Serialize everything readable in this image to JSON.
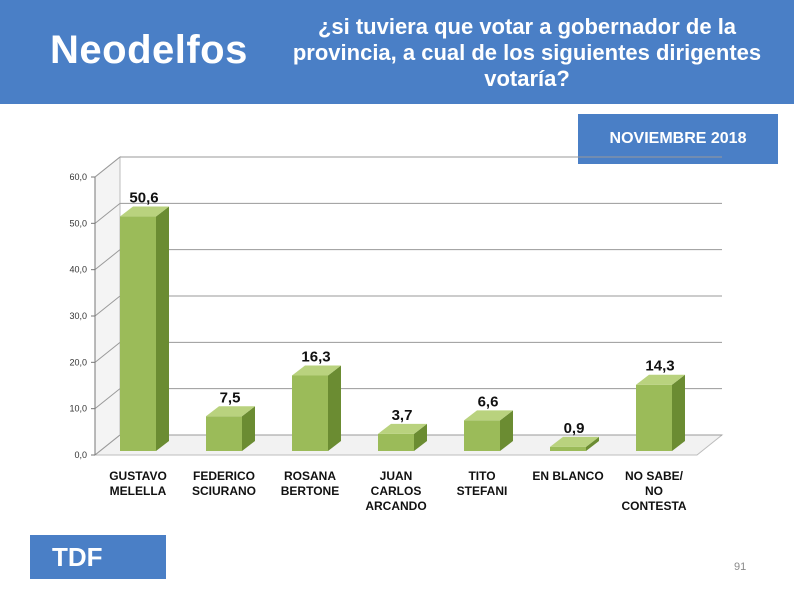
{
  "header": {
    "brand": "Neodelfos",
    "question": "¿si tuviera que votar a gobernador de la provincia, a cual de los siguientes dirigentes votaría?"
  },
  "badges": {
    "date": "NOVIEMBRE 2018",
    "region": "TDF"
  },
  "page_number": "91",
  "colors": {
    "header_bg": "#4a7fc6",
    "bar_front": "#9bbb59",
    "bar_side": "#6b8c32",
    "bar_top": "#b9d27e"
  },
  "chart_data": {
    "type": "bar",
    "categories": [
      [
        "GUSTAVO",
        "MELELLA"
      ],
      [
        "FEDERICO",
        "SCIURANO"
      ],
      [
        "ROSANA",
        "BERTONE"
      ],
      [
        "JUAN",
        "CARLOS",
        "ARCANDO"
      ],
      [
        "TITO",
        "STEFANI"
      ],
      [
        "EN BLANCO"
      ],
      [
        "NO SABE/",
        "NO",
        "CONTESTA"
      ]
    ],
    "values": [
      50.6,
      7.5,
      16.3,
      3.7,
      6.6,
      0.9,
      14.3
    ],
    "value_labels": [
      "50,6",
      "7,5",
      "16,3",
      "3,7",
      "6,6",
      "0,9",
      "14,3"
    ],
    "yticks": [
      "0,0",
      "10,0",
      "20,0",
      "30,0",
      "40,0",
      "50,0",
      "60,0"
    ],
    "ylim": [
      0,
      60
    ],
    "grid": true,
    "legend": "none"
  }
}
